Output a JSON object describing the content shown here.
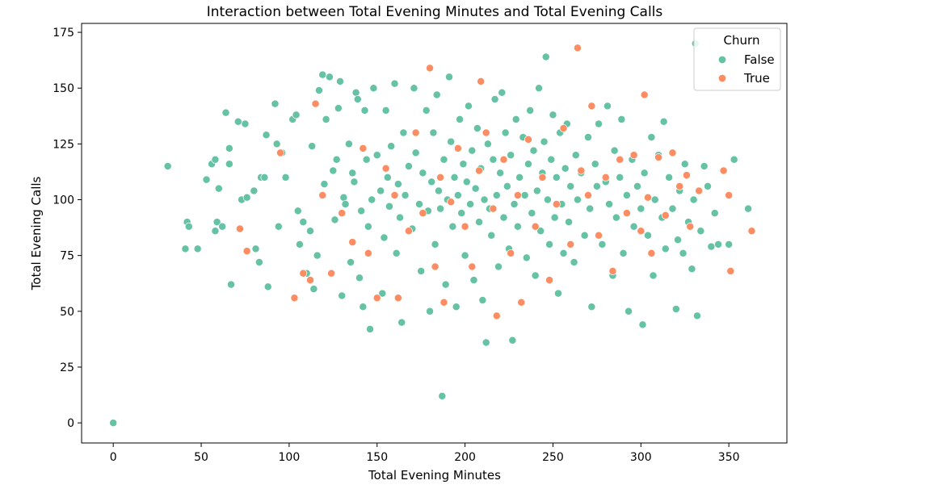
{
  "chart_data": {
    "type": "scatter",
    "title": "Interaction between Total Evening Minutes and Total Evening Calls",
    "xlabel": "Total Evening Minutes",
    "ylabel": "Total Evening Calls",
    "xlim": [
      -18,
      383
    ],
    "ylim": [
      -9,
      179
    ],
    "xticks": [
      0,
      50,
      100,
      150,
      200,
      250,
      300,
      350
    ],
    "yticks": [
      0,
      25,
      50,
      75,
      100,
      125,
      150,
      175
    ],
    "grid": false,
    "legend": {
      "title": "Churn",
      "position": "top-right"
    },
    "series": [
      {
        "name": "False",
        "color": "#66c2a5",
        "points": [
          [
            0,
            0
          ],
          [
            31,
            115
          ],
          [
            42,
            90
          ],
          [
            43,
            88
          ],
          [
            41,
            78
          ],
          [
            48,
            78
          ],
          [
            53,
            109
          ],
          [
            56,
            116
          ],
          [
            58,
            118
          ],
          [
            60,
            105
          ],
          [
            59,
            90
          ],
          [
            62,
            88
          ],
          [
            58,
            86
          ],
          [
            64,
            139
          ],
          [
            66,
            116
          ],
          [
            66,
            123
          ],
          [
            67,
            62
          ],
          [
            71,
            135
          ],
          [
            73,
            100
          ],
          [
            75,
            134
          ],
          [
            76,
            101
          ],
          [
            80,
            104
          ],
          [
            81,
            78
          ],
          [
            83,
            72
          ],
          [
            84,
            110
          ],
          [
            86,
            110
          ],
          [
            87,
            129
          ],
          [
            88,
            61
          ],
          [
            92,
            143
          ],
          [
            93,
            125
          ],
          [
            94,
            88
          ],
          [
            96,
            121
          ],
          [
            98,
            110
          ],
          [
            102,
            136
          ],
          [
            104,
            138
          ],
          [
            105,
            95
          ],
          [
            106,
            80
          ],
          [
            108,
            90
          ],
          [
            110,
            67
          ],
          [
            112,
            86
          ],
          [
            113,
            124
          ],
          [
            114,
            60
          ],
          [
            116,
            75
          ],
          [
            117,
            149
          ],
          [
            119,
            156
          ],
          [
            120,
            107
          ],
          [
            121,
            136
          ],
          [
            123,
            155
          ],
          [
            125,
            113
          ],
          [
            126,
            91
          ],
          [
            127,
            118
          ],
          [
            128,
            141
          ],
          [
            129,
            153
          ],
          [
            130,
            57
          ],
          [
            131,
            101
          ],
          [
            132,
            98
          ],
          [
            134,
            125
          ],
          [
            135,
            72
          ],
          [
            136,
            112
          ],
          [
            137,
            108
          ],
          [
            138,
            148
          ],
          [
            139,
            145
          ],
          [
            140,
            65
          ],
          [
            141,
            95
          ],
          [
            142,
            52
          ],
          [
            143,
            140
          ],
          [
            144,
            118
          ],
          [
            145,
            88
          ],
          [
            146,
            42
          ],
          [
            147,
            100
          ],
          [
            148,
            150
          ],
          [
            150,
            120
          ],
          [
            152,
            104
          ],
          [
            153,
            58
          ],
          [
            154,
            83
          ],
          [
            155,
            140
          ],
          [
            156,
            110
          ],
          [
            157,
            97
          ],
          [
            158,
            124
          ],
          [
            160,
            152
          ],
          [
            161,
            76
          ],
          [
            162,
            107
          ],
          [
            163,
            92
          ],
          [
            164,
            45
          ],
          [
            165,
            130
          ],
          [
            166,
            102
          ],
          [
            168,
            115
          ],
          [
            170,
            87
          ],
          [
            171,
            150
          ],
          [
            172,
            121
          ],
          [
            174,
            98
          ],
          [
            175,
            68
          ],
          [
            176,
            112
          ],
          [
            178,
            140
          ],
          [
            179,
            95
          ],
          [
            180,
            50
          ],
          [
            181,
            108
          ],
          [
            182,
            130
          ],
          [
            183,
            80
          ],
          [
            184,
            147
          ],
          [
            185,
            104
          ],
          [
            186,
            96
          ],
          [
            187,
            12
          ],
          [
            188,
            118
          ],
          [
            189,
            62
          ],
          [
            190,
            100
          ],
          [
            191,
            155
          ],
          [
            192,
            126
          ],
          [
            193,
            88
          ],
          [
            194,
            110
          ],
          [
            195,
            52
          ],
          [
            196,
            102
          ],
          [
            197,
            136
          ],
          [
            198,
            94
          ],
          [
            199,
            116
          ],
          [
            200,
            75
          ],
          [
            201,
            108
          ],
          [
            202,
            142
          ],
          [
            203,
            98
          ],
          [
            204,
            122
          ],
          [
            205,
            64
          ],
          [
            206,
            105
          ],
          [
            207,
            132
          ],
          [
            208,
            90
          ],
          [
            209,
            114
          ],
          [
            210,
            55
          ],
          [
            211,
            100
          ],
          [
            212,
            36
          ],
          [
            213,
            125
          ],
          [
            214,
            96
          ],
          [
            215,
            84
          ],
          [
            216,
            118
          ],
          [
            217,
            145
          ],
          [
            218,
            102
          ],
          [
            219,
            70
          ],
          [
            220,
            112
          ],
          [
            221,
            148
          ],
          [
            222,
            92
          ],
          [
            223,
            130
          ],
          [
            224,
            106
          ],
          [
            225,
            78
          ],
          [
            226,
            120
          ],
          [
            227,
            37
          ],
          [
            228,
            98
          ],
          [
            229,
            136
          ],
          [
            230,
            88
          ],
          [
            231,
            110
          ],
          [
            232,
            54
          ],
          [
            233,
            128
          ],
          [
            234,
            102
          ],
          [
            235,
            74
          ],
          [
            236,
            116
          ],
          [
            237,
            140
          ],
          [
            238,
            94
          ],
          [
            239,
            122
          ],
          [
            240,
            66
          ],
          [
            241,
            104
          ],
          [
            242,
            150
          ],
          [
            243,
            86
          ],
          [
            244,
            112
          ],
          [
            245,
            126
          ],
          [
            246,
            164
          ],
          [
            247,
            100
          ],
          [
            248,
            80
          ],
          [
            249,
            118
          ],
          [
            250,
            138
          ],
          [
            251,
            92
          ],
          [
            252,
            110
          ],
          [
            253,
            58
          ],
          [
            254,
            130
          ],
          [
            255,
            98
          ],
          [
            256,
            76
          ],
          [
            257,
            114
          ],
          [
            258,
            134
          ],
          [
            259,
            90
          ],
          [
            260,
            106
          ],
          [
            262,
            72
          ],
          [
            263,
            120
          ],
          [
            264,
            100
          ],
          [
            266,
            112
          ],
          [
            268,
            84
          ],
          [
            270,
            128
          ],
          [
            271,
            96
          ],
          [
            272,
            52
          ],
          [
            274,
            116
          ],
          [
            275,
            106
          ],
          [
            276,
            134
          ],
          [
            278,
            80
          ],
          [
            280,
            108
          ],
          [
            281,
            142
          ],
          [
            282,
            98
          ],
          [
            284,
            66
          ],
          [
            285,
            122
          ],
          [
            286,
            92
          ],
          [
            288,
            110
          ],
          [
            289,
            136
          ],
          [
            290,
            76
          ],
          [
            292,
            102
          ],
          [
            293,
            50
          ],
          [
            295,
            118
          ],
          [
            296,
            88
          ],
          [
            298,
            106
          ],
          [
            300,
            96
          ],
          [
            301,
            44
          ],
          [
            302,
            112
          ],
          [
            304,
            84
          ],
          [
            306,
            128
          ],
          [
            307,
            66
          ],
          [
            308,
            100
          ],
          [
            310,
            120
          ],
          [
            312,
            92
          ],
          [
            313,
            135
          ],
          [
            314,
            78
          ],
          [
            316,
            110
          ],
          [
            318,
            96
          ],
          [
            320,
            51
          ],
          [
            321,
            82
          ],
          [
            322,
            104
          ],
          [
            324,
            76
          ],
          [
            325,
            116
          ],
          [
            327,
            90
          ],
          [
            329,
            69
          ],
          [
            330,
            100
          ],
          [
            331,
            170
          ],
          [
            332,
            48
          ],
          [
            334,
            86
          ],
          [
            336,
            115
          ],
          [
            338,
            106
          ],
          [
            340,
            79
          ],
          [
            342,
            94
          ],
          [
            344,
            80
          ],
          [
            350,
            80
          ],
          [
            353,
            118
          ],
          [
            361,
            96
          ]
        ]
      },
      {
        "name": "True",
        "color": "#fc8d62",
        "points": [
          [
            72,
            87
          ],
          [
            76,
            77
          ],
          [
            95,
            121
          ],
          [
            103,
            56
          ],
          [
            108,
            67
          ],
          [
            112,
            64
          ],
          [
            115,
            143
          ],
          [
            119,
            102
          ],
          [
            124,
            67
          ],
          [
            130,
            94
          ],
          [
            136,
            81
          ],
          [
            142,
            123
          ],
          [
            145,
            76
          ],
          [
            150,
            56
          ],
          [
            155,
            114
          ],
          [
            160,
            102
          ],
          [
            162,
            56
          ],
          [
            168,
            86
          ],
          [
            172,
            130
          ],
          [
            176,
            94
          ],
          [
            180,
            159
          ],
          [
            183,
            70
          ],
          [
            186,
            110
          ],
          [
            188,
            54
          ],
          [
            192,
            99
          ],
          [
            196,
            123
          ],
          [
            200,
            88
          ],
          [
            204,
            70
          ],
          [
            208,
            113
          ],
          [
            209,
            153
          ],
          [
            212,
            130
          ],
          [
            216,
            96
          ],
          [
            218,
            48
          ],
          [
            222,
            118
          ],
          [
            226,
            76
          ],
          [
            230,
            102
          ],
          [
            232,
            54
          ],
          [
            236,
            127
          ],
          [
            240,
            88
          ],
          [
            244,
            110
          ],
          [
            248,
            64
          ],
          [
            252,
            98
          ],
          [
            256,
            132
          ],
          [
            260,
            80
          ],
          [
            264,
            168
          ],
          [
            266,
            113
          ],
          [
            270,
            102
          ],
          [
            272,
            142
          ],
          [
            276,
            84
          ],
          [
            280,
            110
          ],
          [
            284,
            68
          ],
          [
            288,
            118
          ],
          [
            292,
            94
          ],
          [
            296,
            120
          ],
          [
            300,
            86
          ],
          [
            302,
            147
          ],
          [
            304,
            101
          ],
          [
            306,
            76
          ],
          [
            310,
            119
          ],
          [
            314,
            93
          ],
          [
            318,
            121
          ],
          [
            322,
            106
          ],
          [
            326,
            111
          ],
          [
            328,
            88
          ],
          [
            333,
            104
          ],
          [
            347,
            113
          ],
          [
            350,
            102
          ],
          [
            351,
            68
          ],
          [
            363,
            86
          ]
        ]
      }
    ]
  }
}
